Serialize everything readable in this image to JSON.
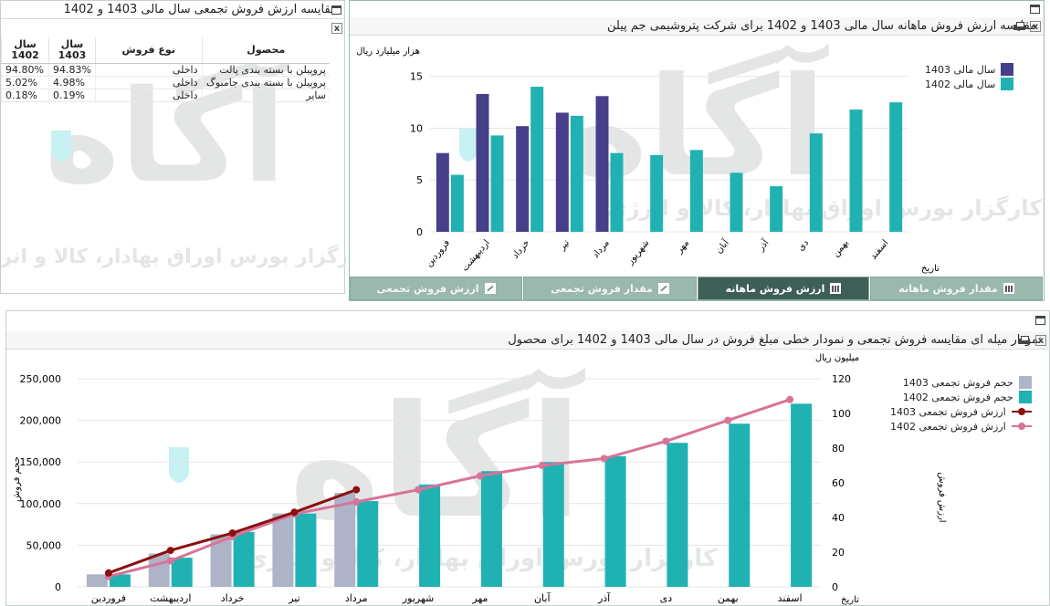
{
  "table_panel": {
    "title": "مقایسه ارزش فروش تجمعی سال مالی 1403 و 1402",
    "columns": [
      "محصول",
      "نوع فروش",
      "سال 1403",
      "سال 1402"
    ],
    "rows": [
      {
        "product": "پروپیلن با بسته بندی پالت",
        "sale_type": "داخلی",
        "v1403": "94.83%",
        "v1402": "94.80%"
      },
      {
        "product": "پروپیلن با بسته بندی جامبوگ",
        "sale_type": "داخلی",
        "v1403": "4.98%",
        "v1402": "5.02%"
      },
      {
        "product": "سایر",
        "sale_type": "داخلی",
        "v1403": "0.19%",
        "v1402": "0.18%"
      }
    ]
  },
  "monthly_panel": {
    "title": "مقایسه ارزش فروش ماهانه سال مالی 1403 و 1402 برای شرکت پتروشیمی جم پیلن",
    "tabs": [
      {
        "label": "مقدار فروش ماهانه",
        "icon": "bar-chart-icon",
        "active": false
      },
      {
        "label": "ارزش فروش ماهانه",
        "icon": "bar-chart-icon",
        "active": true
      },
      {
        "label": "مقدار فروش تجمعی",
        "icon": "line-chart-icon",
        "active": false
      },
      {
        "label": "ارزش فروش تجمعی",
        "icon": "line-chart-icon",
        "active": false
      }
    ]
  },
  "cumulative_panel": {
    "title": "نمودار میله ای مقایسه فروش تجمعی و نمودار خطی مبلغ فروش در سال مالی 1403 و 1402 برای محصول"
  },
  "watermark": {
    "logo": "آگاه",
    "tagline": "کارگزار بورس اوراق بهادار، کالا و انرژی"
  },
  "colors": {
    "bar_1403_monthly": "#463f8a",
    "bar_1402": "#20b2b2",
    "bar_1403_cumulative": "#aeb3c7",
    "line_1403": "#8b1010",
    "line_1402": "#d8739a"
  },
  "chart_data": [
    {
      "type": "bar",
      "title": "",
      "ylabel": "هزار میلیارد ریال",
      "xlabel": "تاریخ",
      "ylim": [
        0,
        17
      ],
      "yticks": [
        0,
        5,
        10,
        15
      ],
      "categories": [
        "فروردین",
        "اردیبهشت",
        "خرداد",
        "تیر",
        "مرداد",
        "شهریور",
        "مهر",
        "آبان",
        "آذر",
        "دی",
        "بهمن",
        "اسفند"
      ],
      "series": [
        {
          "name": "سال مالی 1403",
          "values": [
            7.6,
            13.3,
            10.2,
            11.5,
            13.1,
            null,
            null,
            null,
            null,
            null,
            null,
            null
          ]
        },
        {
          "name": "سال مالی 1402",
          "values": [
            5.5,
            9.3,
            14.0,
            11.2,
            7.6,
            7.4,
            7.9,
            5.7,
            4.4,
            9.5,
            11.8,
            12.5
          ]
        }
      ],
      "legend": "top-right"
    },
    {
      "type": "bar",
      "title": "",
      "ylabel": "حجم فروش",
      "y2label": "ارزش فروش",
      "y2unit": "میلیون ریال",
      "xlabel": "تاریخ",
      "ylim": [
        0,
        250000
      ],
      "yticks": [
        0,
        50000,
        100000,
        150000,
        200000,
        250000
      ],
      "ytick_labels": [
        "0",
        "50,000",
        "100,000",
        "150,000",
        "200,000",
        "250,000"
      ],
      "y2lim": [
        0,
        120
      ],
      "y2ticks": [
        0,
        20,
        40,
        60,
        80,
        100,
        120
      ],
      "categories": [
        "فروردین",
        "اردیبهشت",
        "خرداد",
        "تیر",
        "مرداد",
        "شهریور",
        "مهر",
        "آبان",
        "آذر",
        "دی",
        "بهمن",
        "اسفند"
      ],
      "series": [
        {
          "name": "حجم فروش تجمعی 1403",
          "kind": "bar",
          "values": [
            15000,
            40000,
            63000,
            88000,
            113000,
            null,
            null,
            null,
            null,
            null,
            null,
            null
          ]
        },
        {
          "name": "حجم فروش تجمعی 1402",
          "kind": "bar",
          "values": [
            15000,
            35000,
            66000,
            88000,
            103000,
            123000,
            139000,
            150000,
            157000,
            173000,
            196000,
            220000
          ]
        },
        {
          "name": "ارزش فروش تجمعی 1403",
          "kind": "line",
          "axis": "y2",
          "values": [
            8,
            21,
            31,
            43,
            56,
            null,
            null,
            null,
            null,
            null,
            null,
            null
          ]
        },
        {
          "name": "ارزش فروش تجمعی 1402",
          "kind": "line",
          "axis": "y2",
          "values": [
            6,
            15,
            29,
            42,
            49,
            56,
            64,
            70,
            74,
            84,
            96,
            108
          ]
        }
      ],
      "legend": "top-right"
    }
  ]
}
